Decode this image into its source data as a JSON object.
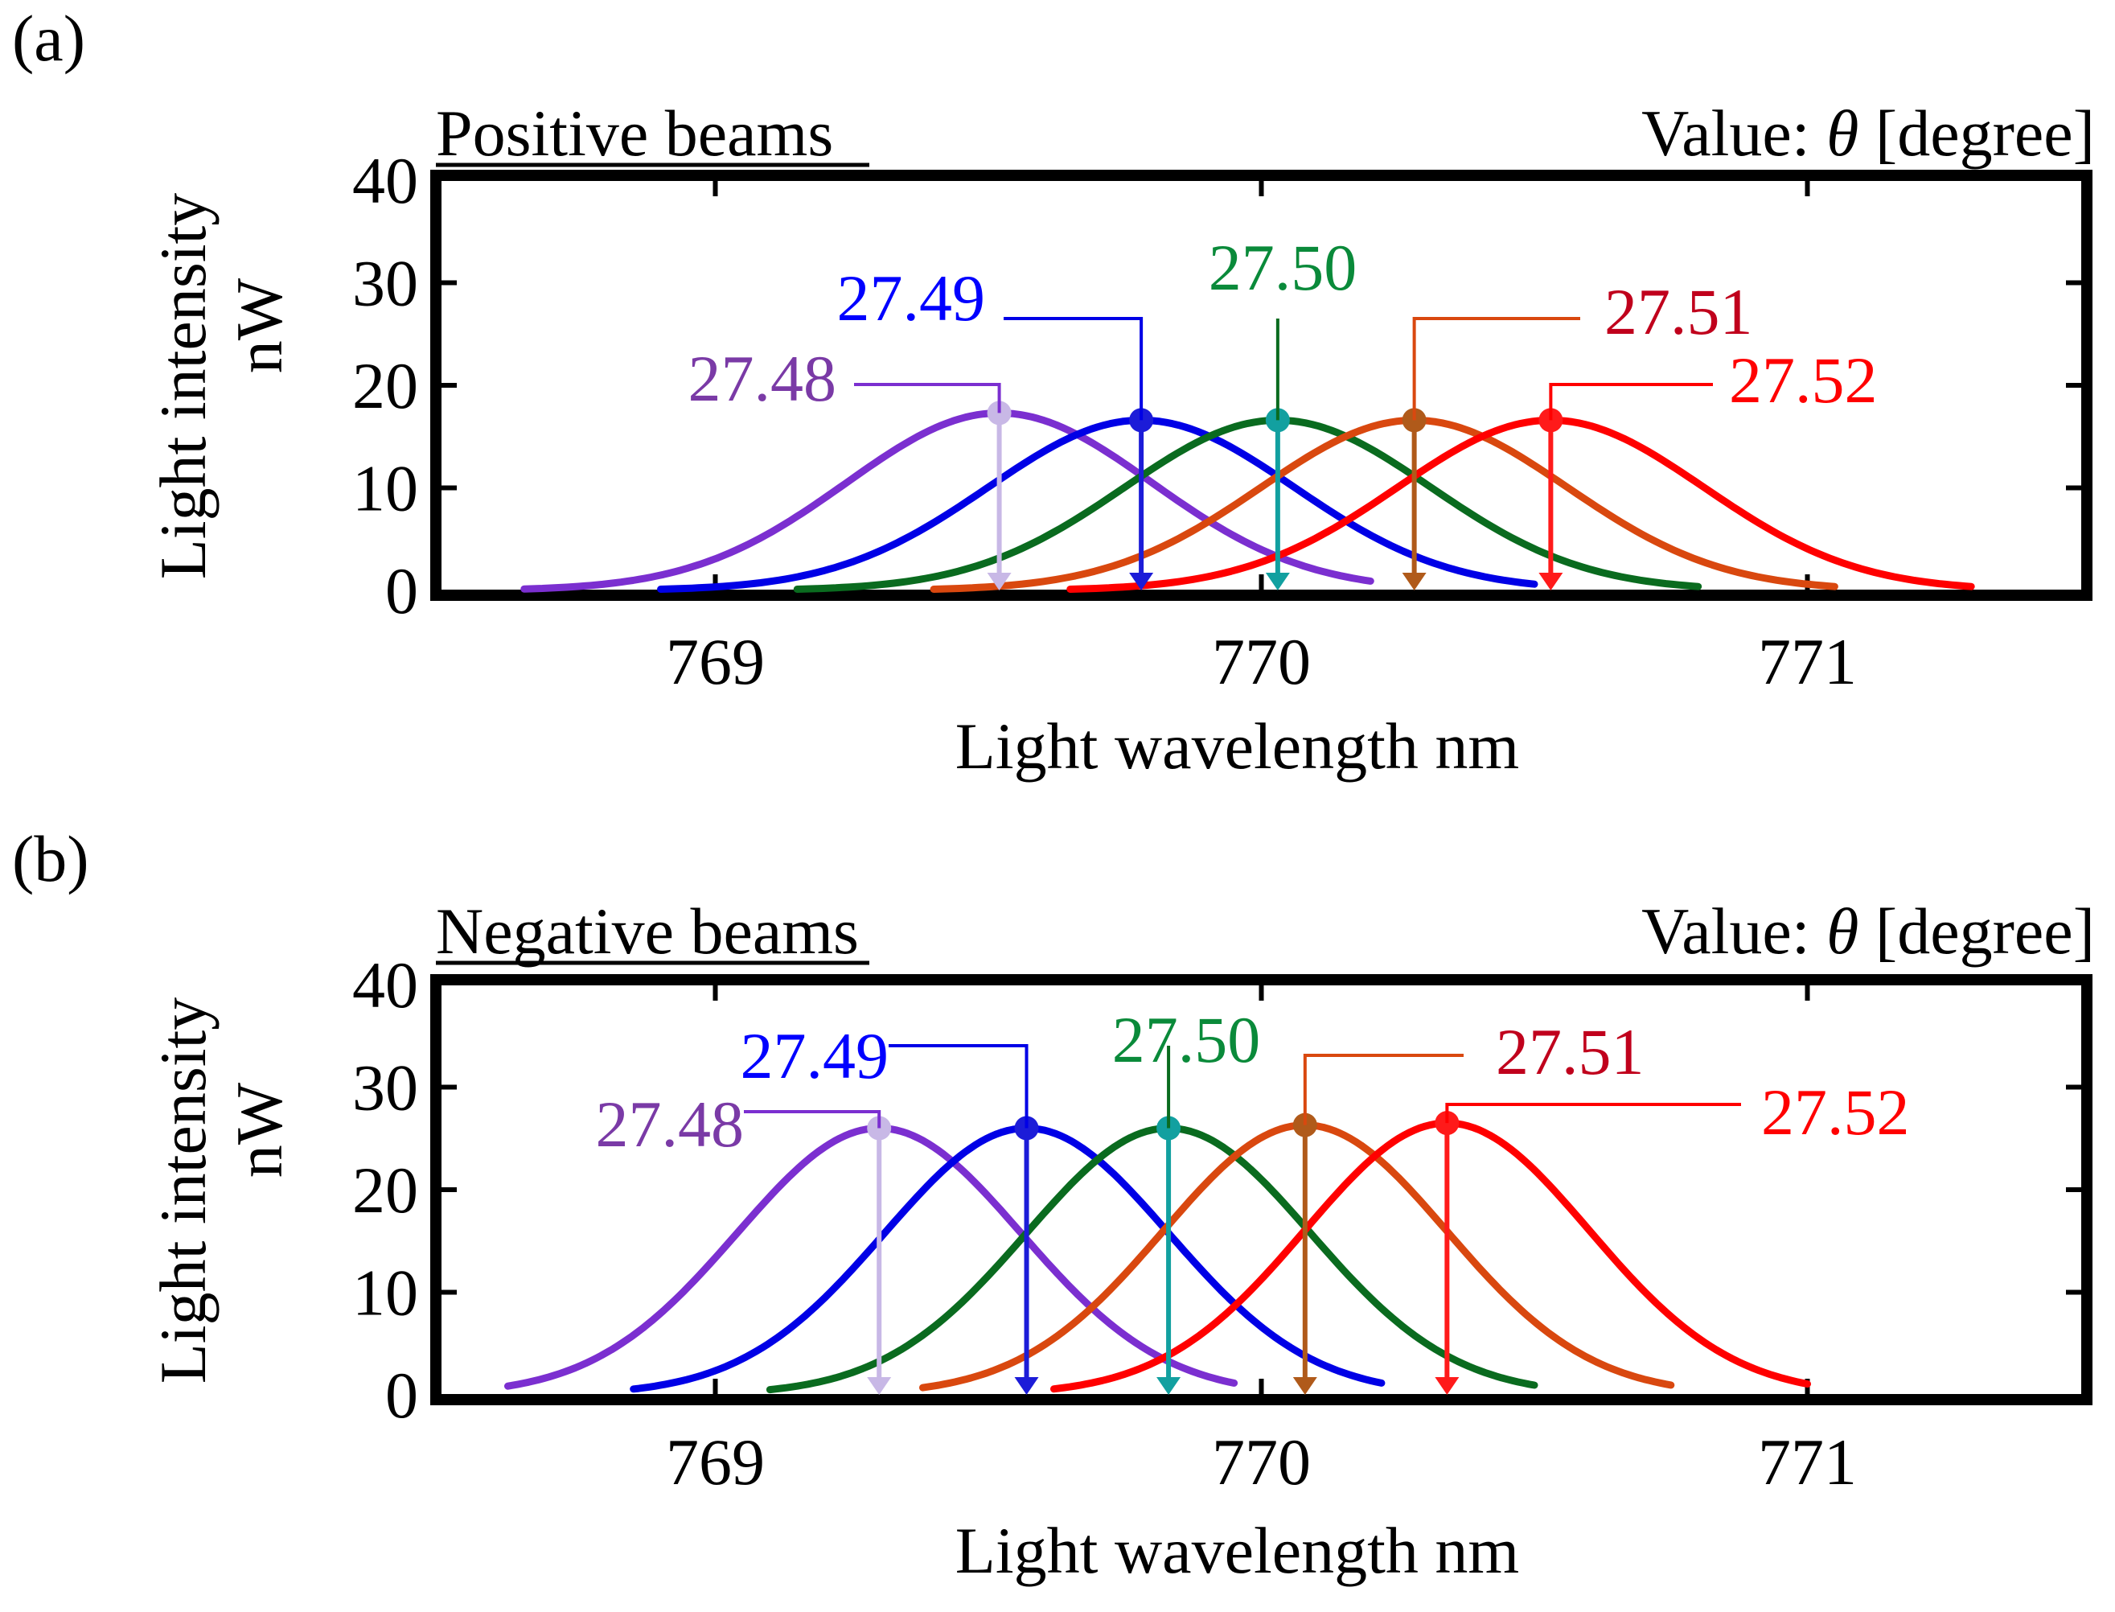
{
  "figure": {
    "axis_labels": {
      "ylabel_line1": "Light intensity",
      "ylabel_line2": "nW",
      "xlabel": "Light wavelength nm"
    },
    "value_label": {
      "prefix": "Value: ",
      "symbol": "θ",
      "suffix": " [degree]"
    },
    "series_colors": {
      "27.48": "#7b2fd0",
      "27.49": "#0000e6",
      "27.50": "#0a6b1f",
      "27.51": "#d9480f",
      "27.52": "#ff0000"
    },
    "marker_colors": {
      "27.48": "#c8b8e6",
      "27.49": "#1c1cd8",
      "27.50": "#12a0a0",
      "27.51": "#b05a1a",
      "27.52": "#ff1a1a"
    },
    "label_colors": {
      "27.48": "#7a3aa6",
      "27.49": "#0000ff",
      "27.50": "#0a8a3a",
      "27.51": "#c0001c",
      "27.52": "#ff0000"
    }
  },
  "chart_data": [
    {
      "type": "line",
      "panel_label": "(a)",
      "title": "Positive beams",
      "xlabel": "Light wavelength nm",
      "ylabel": "Light intensity nW",
      "xlim": [
        768.5,
        771.5
      ],
      "ylim": [
        0,
        40
      ],
      "xticks": [
        769,
        770,
        771
      ],
      "yticks": [
        0,
        10,
        20,
        30,
        40
      ],
      "legend_title": "Value: θ [degree]",
      "series": [
        {
          "name": "27.48",
          "peak_x": 769.52,
          "peak_y": 17.3,
          "sigma": 0.28,
          "start_x": 768.65,
          "end_x": 770.2
        },
        {
          "name": "27.49",
          "peak_x": 769.78,
          "peak_y": 16.6,
          "sigma": 0.28,
          "start_x": 768.9,
          "end_x": 770.5
        },
        {
          "name": "27.50",
          "peak_x": 770.03,
          "peak_y": 16.6,
          "sigma": 0.28,
          "start_x": 769.15,
          "end_x": 770.8
        },
        {
          "name": "27.51",
          "peak_x": 770.28,
          "peak_y": 16.6,
          "sigma": 0.28,
          "start_x": 769.4,
          "end_x": 771.05
        },
        {
          "name": "27.52",
          "peak_x": 770.53,
          "peak_y": 16.6,
          "sigma": 0.28,
          "start_x": 769.65,
          "end_x": 771.3
        }
      ]
    },
    {
      "type": "line",
      "panel_label": "(b)",
      "title": "Negative beams",
      "xlabel": "Light wavelength nm",
      "ylabel": "Light intensity nW",
      "xlim": [
        768.5,
        771.5
      ],
      "ylim": [
        0,
        40
      ],
      "xticks": [
        769,
        770,
        771
      ],
      "yticks": [
        0,
        10,
        20,
        30,
        40
      ],
      "legend_title": "Value: θ [degree]",
      "series": [
        {
          "name": "27.48",
          "peak_x": 769.3,
          "peak_y": 26.0,
          "sigma": 0.26,
          "start_x": 768.62,
          "end_x": 769.95
        },
        {
          "name": "27.49",
          "peak_x": 769.57,
          "peak_y": 26.0,
          "sigma": 0.26,
          "start_x": 768.85,
          "end_x": 770.22
        },
        {
          "name": "27.50",
          "peak_x": 769.83,
          "peak_y": 26.0,
          "sigma": 0.26,
          "start_x": 769.1,
          "end_x": 770.5
        },
        {
          "name": "27.51",
          "peak_x": 770.08,
          "peak_y": 26.3,
          "sigma": 0.26,
          "start_x": 769.38,
          "end_x": 770.75
        },
        {
          "name": "27.52",
          "peak_x": 770.34,
          "peak_y": 26.5,
          "sigma": 0.26,
          "start_x": 769.62,
          "end_x": 771.0
        }
      ]
    }
  ]
}
